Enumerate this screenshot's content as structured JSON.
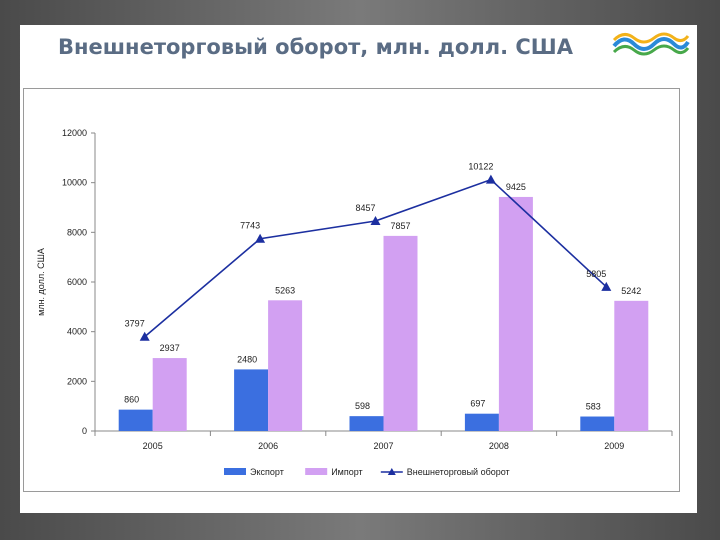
{
  "slide": {
    "title": "Внешнеторговый оборот, млн. долл. США",
    "logo_icon": "wave-logo-icon"
  },
  "chart_data": {
    "type": "bar",
    "categories": [
      "2005",
      "2006",
      "2007",
      "2008",
      "2009"
    ],
    "series": [
      {
        "name": "Экспорт",
        "kind": "bar",
        "color": "#3b6fe0",
        "values": [
          860,
          2480,
          598,
          697,
          583
        ]
      },
      {
        "name": "Импорт",
        "kind": "bar",
        "color": "#d2a0f2",
        "values": [
          2937,
          5263,
          7857,
          9425,
          5242
        ]
      },
      {
        "name": "Внешнеторговый оборот",
        "kind": "line",
        "color": "#1c2fa0",
        "marker": "triangle",
        "values": [
          3797,
          7743,
          8457,
          10122,
          5805
        ]
      }
    ],
    "ylabel": "млн. долл. США",
    "xlabel": "",
    "ylim": [
      0,
      12000
    ],
    "yticks": [
      "0",
      "2000",
      "4000",
      "6000",
      "8000",
      "10000",
      "12000"
    ],
    "data_labels": {
      "Экспорт": [
        "860",
        "2480",
        "598",
        "697",
        "583"
      ],
      "Импорт": [
        "2937",
        "5263",
        "7857",
        "9425",
        "5242"
      ],
      "Внешнеторговый оборот": [
        "3797",
        "7743",
        "8457",
        "10122",
        "5805"
      ]
    },
    "grid": false,
    "legend_position": "bottom"
  }
}
